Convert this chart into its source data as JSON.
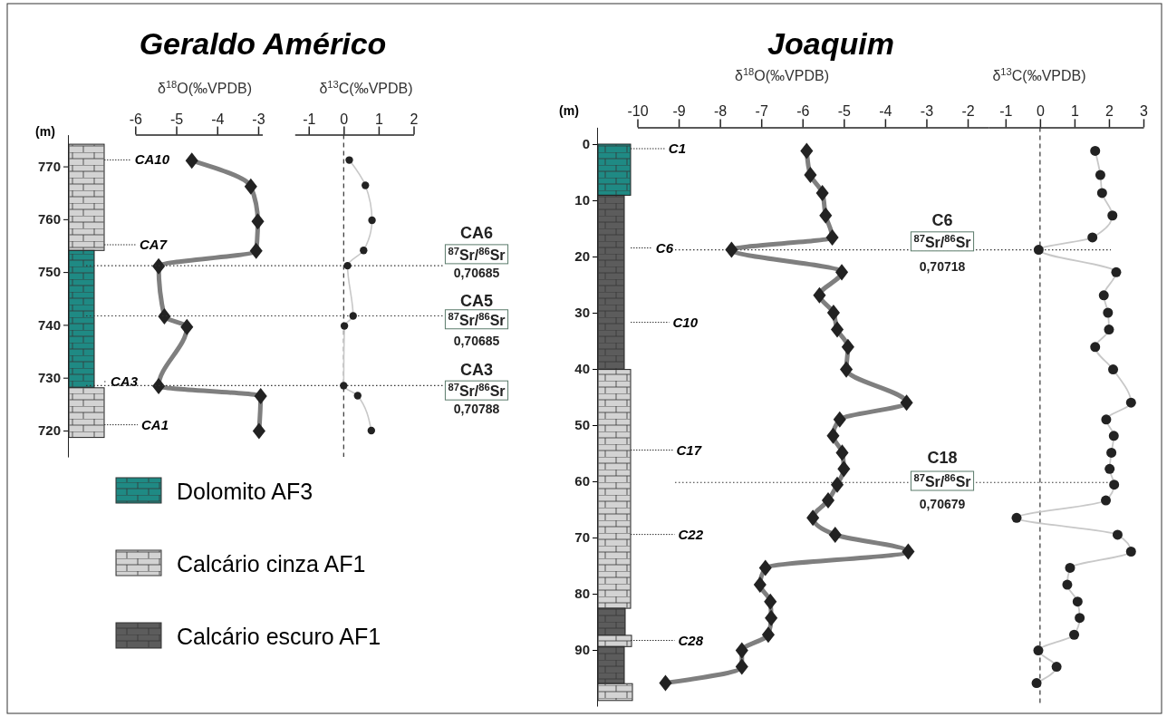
{
  "chart_data": [
    {
      "type": "line",
      "title": "Geraldo Américo",
      "xlabel": "δ$^{18}$O(‰VPDB)",
      "ylabel": "(m)",
      "xlim": [
        -6,
        -2.9
      ],
      "xticks": [
        -6,
        -5,
        -4,
        -3
      ],
      "ylim": [
        715,
        776
      ],
      "yticks": [
        720,
        730,
        740,
        750,
        760,
        770
      ],
      "marker": "diamond",
      "color": "#7f7f7f",
      "x": [
        -4.62,
        -3.18,
        -3.01,
        -3.05,
        -5.43,
        -5.29,
        -4.74,
        -5.43,
        -2.94,
        -2.98
      ],
      "values": [
        771.1,
        766.2,
        759.6,
        754.0,
        751.1,
        741.6,
        739.6,
        728.4,
        726.5,
        719.9
      ],
      "annotations": [
        "CA10",
        "CA7",
        "CA3",
        "CA1",
        "Dolomito AF3",
        "Calcário cinza AF1",
        "Calcário escuro AF1"
      ]
    },
    {
      "type": "line",
      "xlabel": "δ$^{13}$C(‰VPDB)",
      "xlim": [
        -1.4,
        2
      ],
      "xticks": [
        -1,
        0,
        1,
        2
      ],
      "ylim": [
        715,
        776
      ],
      "tick_labels": "x",
      "marker": "circle",
      "color": "#c8c8c8",
      "x": [
        0.16,
        0.62,
        0.81,
        0.57,
        0.11,
        0.27,
        0.02,
        0.0,
        0.4,
        0.79
      ],
      "values": [
        771.2,
        766.4,
        759.8,
        754.1,
        751.2,
        741.7,
        739.8,
        728.5,
        726.6,
        720.0
      ],
      "ref_lines": [
        {
          "axis": "x",
          "value": 0,
          "line_style": "dashed"
        },
        {
          "axis": "y",
          "value": 751.2,
          "label": "CA6\n$^{87}$Sr/$^{86}$Sr\n0,70685",
          "line_style": "dotted"
        },
        {
          "axis": "y",
          "value": 741.7,
          "label": "CA5\n$^{87}$Sr/$^{86}$Sr\n0,70685",
          "line_style": "dotted"
        },
        {
          "axis": "y",
          "value": 728.5,
          "label": "CA3\n$^{87}$Sr/$^{86}$Sr\n0,70788",
          "line_style": "dotted"
        }
      ]
    },
    {
      "type": "line",
      "title": "Joaquim",
      "xlabel": "δ$^{18}$O(‰VPDB)",
      "ylabel": "(m)",
      "xlim": [
        -10,
        -1.5
      ],
      "xticks": [
        -10,
        -9,
        -8,
        -7,
        -6,
        -5,
        -4,
        -3,
        -2
      ],
      "ylim": [
        100,
        -3
      ],
      "yticks": [
        0,
        10,
        20,
        30,
        40,
        50,
        60,
        70,
        80,
        90
      ],
      "marker": "diamond",
      "color": "#7f7f7f",
      "x": [
        -5.9,
        -5.81,
        -5.52,
        -5.44,
        -5.28,
        -7.72,
        -5.05,
        -5.59,
        -5.25,
        -5.16,
        -4.9,
        -4.94,
        -3.48,
        -5.1,
        -5.26,
        -5.04,
        -5.0,
        -5.16,
        -5.38,
        -5.75,
        -5.21,
        -3.44,
        -6.9,
        -7.03,
        -6.78,
        -6.76,
        -6.83,
        -7.47,
        -7.47,
        -9.32
      ],
      "values": [
        1.2,
        5.5,
        8.7,
        12.7,
        16.6,
        18.8,
        22.8,
        26.9,
        30.0,
        33.0,
        36.1,
        40.1,
        46.0,
        49.0,
        51.9,
        54.9,
        57.8,
        60.6,
        63.4,
        66.5,
        69.5,
        72.5,
        75.4,
        78.4,
        81.4,
        84.3,
        87.3,
        90.1,
        93.0,
        95.9
      ],
      "annotations": [
        "C1",
        "C6",
        "C10",
        "C17",
        "C22",
        "C28"
      ],
      "ref_lines": [
        {
          "axis": "y",
          "value": 18.8,
          "label": "C6\n$^{87}$Sr/$^{86}$Sr\n0,70718",
          "line_style": "dotted"
        },
        {
          "axis": "y",
          "value": 60.2,
          "label": "C18\n$^{87}$Sr/$^{86}$Sr\n0,70679",
          "line_style": "dotted"
        }
      ]
    },
    {
      "type": "line",
      "xlabel": "δ$^{13}$C(‰VPDB)",
      "xlim": [
        -1.5,
        3
      ],
      "xticks": [
        -1,
        0,
        1,
        2,
        3
      ],
      "ylim": [
        100,
        -3
      ],
      "tick_labels": "x",
      "marker": "circle",
      "color": "#c8c8c8",
      "x": [
        1.6,
        1.75,
        1.8,
        2.1,
        1.52,
        -0.04,
        2.21,
        1.85,
        1.97,
        2.0,
        1.6,
        2.12,
        2.64,
        1.92,
        2.14,
        2.07,
        2.02,
        2.15,
        1.91,
        -0.68,
        2.25,
        2.64,
        0.87,
        0.79,
        1.09,
        1.15,
        0.99,
        -0.05,
        0.48,
        -0.1
      ],
      "values": [
        1.2,
        5.5,
        8.7,
        12.7,
        16.6,
        18.8,
        22.8,
        26.9,
        30.0,
        33.0,
        36.1,
        40.1,
        46.0,
        49.0,
        51.9,
        54.9,
        57.8,
        60.6,
        63.4,
        66.5,
        69.5,
        72.5,
        75.4,
        78.4,
        81.4,
        84.3,
        87.3,
        90.1,
        93.0,
        95.9
      ],
      "ref_lines": [
        {
          "axis": "x",
          "value": 0,
          "line_style": "dashed"
        }
      ]
    }
  ]
}
